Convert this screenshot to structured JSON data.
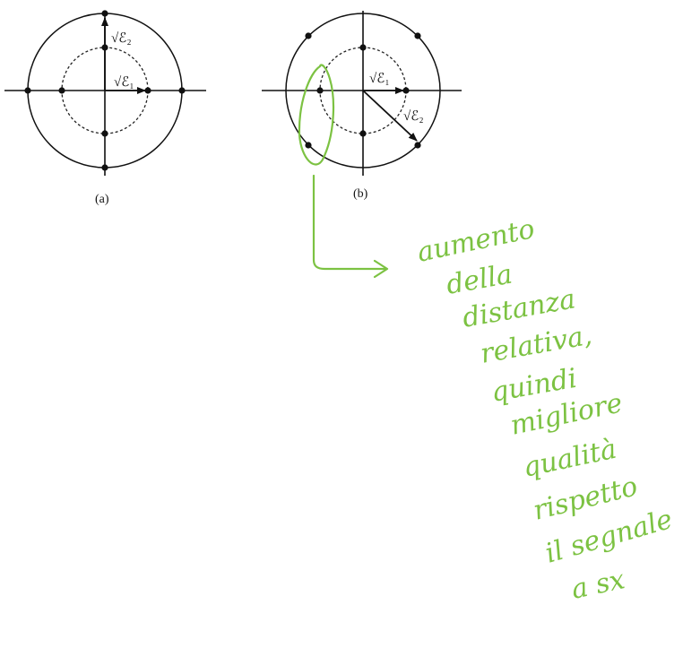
{
  "diagram_a": {
    "label_e2": "√ℰ₂",
    "label_e1": "√ℰ₁",
    "caption": "(a)"
  },
  "diagram_b": {
    "label_e1": "√ℰ₁",
    "label_e2": "√ℰ₂",
    "caption": "(b)"
  },
  "annotation": {
    "color": "#7cc242",
    "lines": [
      "aumento",
      "della",
      "distanza",
      "relativa,",
      "quindi",
      "migliore",
      "qualità",
      "rispetto",
      "il segnale",
      "a sx"
    ]
  }
}
